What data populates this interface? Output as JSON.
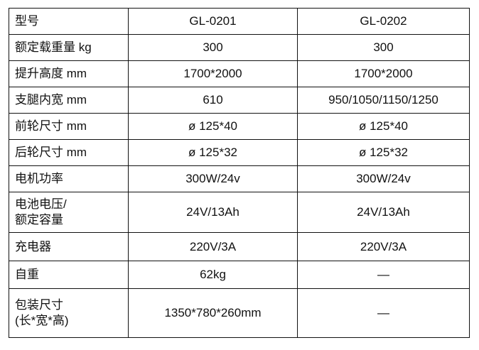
{
  "rows": [
    {
      "label": "型号",
      "a": "GL-0201",
      "b": "GL-0202"
    },
    {
      "label": "额定载重量 kg",
      "a": "300",
      "b": "300"
    },
    {
      "label": "提升高度 mm",
      "a": "1700*2000",
      "b": "1700*2000"
    },
    {
      "label": "支腿内宽 mm",
      "a": "610",
      "b": "950/1050/1150/1250"
    },
    {
      "label": "前轮尺寸 mm",
      "a": "ø 125*40",
      "b": "ø 125*40"
    },
    {
      "label": "后轮尺寸 mm",
      "a": "ø 125*32",
      "b": "ø 125*32"
    },
    {
      "label": "电机功率",
      "a": "300W/24v",
      "b": "300W/24v"
    },
    {
      "label": "电池电压/",
      "label2": "额定容量",
      "a": "24V/13Ah",
      "b": "24V/13Ah"
    },
    {
      "label": "充电器",
      "a": "220V/3A",
      "b": "220V/3A"
    },
    {
      "label": "自重",
      "a": "62kg",
      "b": "—"
    },
    {
      "label": "包装尺寸",
      "label2": "(长*宽*高)",
      "a": "1350*780*260mm",
      "b": "—"
    }
  ]
}
